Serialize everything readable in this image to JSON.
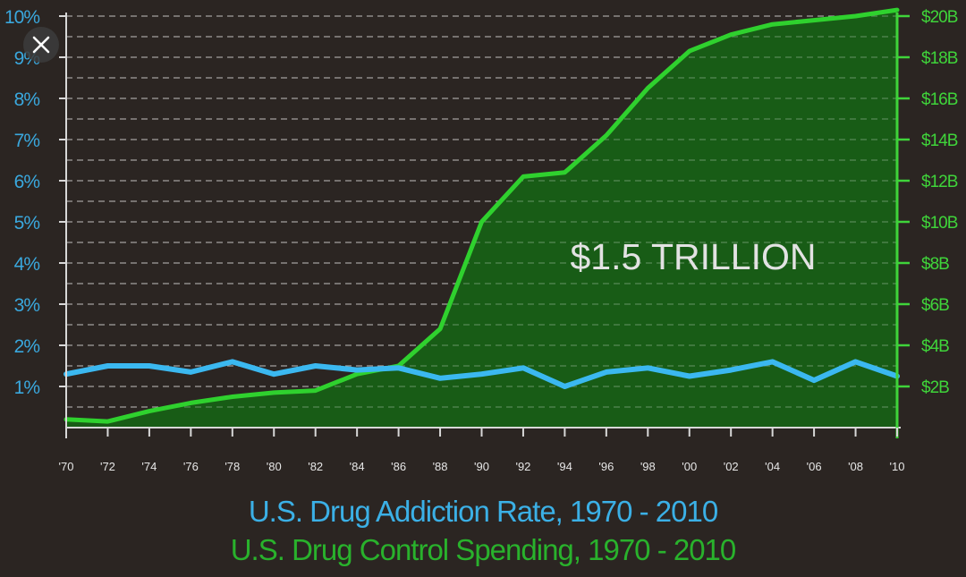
{
  "colors": {
    "background": "#2b2522",
    "spending": "#2fd12e",
    "spending_fill": "#146a14",
    "addiction": "#3bb8f0",
    "axis_left": "#3aa8de",
    "axis_right": "#3fd43a",
    "grid": "#bdbdbd",
    "callout": "#e2e2e2"
  },
  "close_icon": "close-icon",
  "callout": "$1.5 TRILLION",
  "titles": {
    "addiction": "U.S. Drug Addiction Rate, 1970 - 2010",
    "spending": "U.S. Drug Control Spending, 1970 - 2010"
  },
  "chart_data": {
    "type": "line",
    "x": [
      1970,
      1972,
      1974,
      1976,
      1978,
      1980,
      1982,
      1984,
      1986,
      1988,
      1990,
      1992,
      1994,
      1996,
      1998,
      2000,
      2002,
      2004,
      2006,
      2008,
      2010
    ],
    "x_tick_labels": [
      "'70",
      "'72",
      "'74",
      "'76",
      "'78",
      "'80",
      "'82",
      "'84",
      "'86",
      "'88",
      "'90",
      "'92",
      "'94",
      "'96",
      "'98",
      "'00",
      "'02",
      "'04",
      "'06",
      "'08",
      "'10"
    ],
    "y_left": {
      "label": "U.S. Drug Addiction Rate",
      "range": [
        0,
        10
      ],
      "ticks": [
        1,
        2,
        3,
        4,
        5,
        6,
        7,
        8,
        9,
        10
      ],
      "tick_labels": [
        "1%",
        "2%",
        "3%",
        "4%",
        "5%",
        "6%",
        "7%",
        "8%",
        "9%",
        "10%"
      ]
    },
    "y_right": {
      "label": "U.S. Drug Control Spending",
      "range": [
        0,
        20
      ],
      "ticks": [
        2,
        4,
        6,
        8,
        10,
        12,
        14,
        16,
        18,
        20
      ],
      "tick_labels": [
        "$2B",
        "$4B",
        "$6B",
        "$8B",
        "$10B",
        "$12B",
        "$14B",
        "$16B",
        "$18B",
        "$20B"
      ]
    },
    "series": [
      {
        "name": "U.S. Drug Addiction Rate",
        "axis": "left",
        "values": [
          1.3,
          1.5,
          1.5,
          1.35,
          1.6,
          1.3,
          1.5,
          1.4,
          1.45,
          1.2,
          1.3,
          1.45,
          1.0,
          1.35,
          1.45,
          1.25,
          1.4,
          1.6,
          1.15,
          1.6,
          1.25
        ]
      },
      {
        "name": "U.S. Drug Control Spending",
        "axis": "right",
        "fill": true,
        "values": [
          0.4,
          0.3,
          0.8,
          1.2,
          1.5,
          1.7,
          1.8,
          2.6,
          3.0,
          4.8,
          10.0,
          12.2,
          12.4,
          14.2,
          16.5,
          18.3,
          19.1,
          19.6,
          19.8,
          20.0,
          20.3
        ]
      }
    ],
    "grid": true,
    "annotation": "$1.5 TRILLION"
  }
}
